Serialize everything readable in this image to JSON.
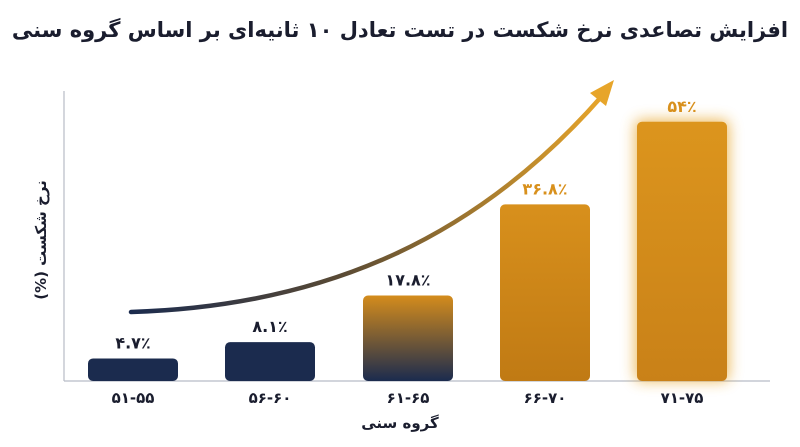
{
  "chart_data": {
    "type": "bar",
    "title": "افزایش تصاعدی نرخ شکست در تست تعادل ۱۰ ثانیه‌ای بر اساس گروه سنی",
    "xlabel": "گروه سنی",
    "ylabel": "نرخ شکست (%)",
    "categories": [
      "۵۱-۵۵",
      "۵۶-۶۰",
      "۶۱-۶۵",
      "۶۶-۷۰",
      "۷۱-۷۵"
    ],
    "values": [
      4.7,
      8.1,
      17.8,
      36.8,
      54
    ],
    "value_labels": [
      "۴.۷٪",
      "۸.۱٪",
      "۱۷.۸٪",
      "۳۶.۸٪",
      "۵۴٪"
    ],
    "ylim": [
      0,
      60
    ],
    "grid": false,
    "legend": "none",
    "trend_arrow": true
  },
  "colors": {
    "navy": "#1b2b4e",
    "gold": "#d8901c",
    "gold_light": "#e7a52a",
    "text": "#1a1d2e",
    "axis": "#b8bcc6"
  }
}
